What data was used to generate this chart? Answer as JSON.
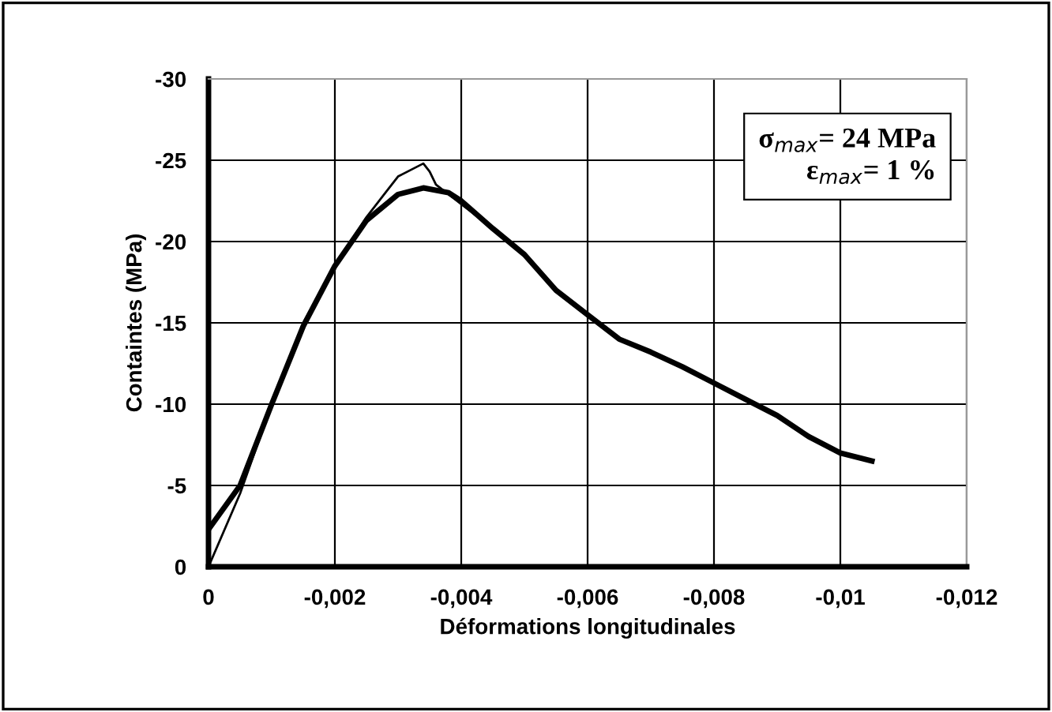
{
  "chart_data": {
    "type": "line",
    "xlabel": "Déformations longitudinales",
    "ylabel": "Containtes (MPa)",
    "xlim": [
      0,
      -0.012
    ],
    "ylim": [
      0,
      -30
    ],
    "xticks": [
      0,
      {
        "value": -0.002,
        "label": "-0,002"
      },
      {
        "value": -0.004,
        "label": "-0,004"
      },
      {
        "value": -0.006,
        "label": "-0,006"
      },
      {
        "value": -0.008,
        "label": "-0,008"
      },
      {
        "value": -0.01,
        "label": "-0,01"
      },
      {
        "value": -0.012,
        "label": "-0,012"
      }
    ],
    "yticks": [
      0,
      -5,
      -10,
      -15,
      -20,
      -25,
      -30
    ],
    "grid": true,
    "legend": false,
    "marker": "none",
    "line_style": "solid",
    "series": [
      {
        "color": "#000000",
        "x": [
          0,
          -0.0005,
          -0.001,
          -0.0015,
          -0.002,
          -0.0025,
          -0.0028,
          -0.003,
          -0.0034,
          -0.0035,
          -0.0036,
          -0.004,
          -0.0045,
          -0.005,
          -0.0055,
          -0.006,
          -0.0065,
          -0.007,
          -0.0075,
          -0.008,
          -0.0085,
          -0.009,
          -0.0095,
          -0.01,
          -0.0105
        ],
        "values": [
          0,
          -4.5,
          -10,
          -15,
          -18.5,
          -21.5,
          -23,
          -24,
          -24.8,
          -24.3,
          -23.5,
          -22.3,
          -20.8,
          -19.2,
          -17,
          -15.5,
          -14,
          -13.2,
          -12.3,
          -11.3,
          -10.3,
          -9.3,
          -8,
          -7,
          -6.5
        ]
      },
      {
        "color": "#000000",
        "x": [
          0,
          -0.0005,
          -0.001,
          -0.0015,
          -0.002,
          -0.0025,
          -0.003,
          -0.0034,
          -0.0038,
          -0.004,
          -0.0045,
          -0.005,
          -0.0055,
          -0.006,
          -0.0065,
          -0.007,
          -0.0075,
          -0.008,
          -0.0085,
          -0.009,
          -0.0095,
          -0.01,
          -0.0105
        ],
        "values": [
          -2.3,
          -5,
          -10,
          -14.8,
          -18.5,
          -21.3,
          -22.9,
          -23.3,
          -23,
          -22.5,
          -20.8,
          -19.2,
          -17,
          -15.5,
          -14,
          -13.2,
          -12.3,
          -11.3,
          -10.3,
          -9.3,
          -8,
          -7,
          -6.5
        ]
      }
    ],
    "annotations": [
      "σ$_{max}$= 24 MPa\n    ε$_{max}$= 1 %"
    ]
  }
}
